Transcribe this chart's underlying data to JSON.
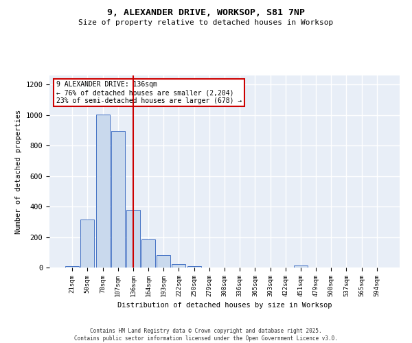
{
  "title_line1": "9, ALEXANDER DRIVE, WORKSOP, S81 7NP",
  "title_line2": "Size of property relative to detached houses in Worksop",
  "xlabel": "Distribution of detached houses by size in Worksop",
  "ylabel": "Number of detached properties",
  "categories": [
    "21sqm",
    "50sqm",
    "78sqm",
    "107sqm",
    "136sqm",
    "164sqm",
    "193sqm",
    "222sqm",
    "250sqm",
    "279sqm",
    "308sqm",
    "336sqm",
    "365sqm",
    "393sqm",
    "422sqm",
    "451sqm",
    "479sqm",
    "508sqm",
    "537sqm",
    "565sqm",
    "594sqm"
  ],
  "values": [
    10,
    315,
    1005,
    895,
    380,
    183,
    80,
    22,
    8,
    0,
    0,
    0,
    0,
    0,
    0,
    15,
    0,
    0,
    0,
    0,
    0
  ],
  "bar_color": "#c9d9ed",
  "bar_edge_color": "#4472c4",
  "vline_index": 4,
  "vline_color": "#cc0000",
  "annotation_title": "9 ALEXANDER DRIVE: 136sqm",
  "annotation_line1": "← 76% of detached houses are smaller (2,204)",
  "annotation_line2": "23% of semi-detached houses are larger (678) →",
  "annotation_box_color": "#cc0000",
  "ylim": [
    0,
    1260
  ],
  "yticks": [
    0,
    200,
    400,
    600,
    800,
    1000,
    1200
  ],
  "background_color": "#e8eef7",
  "grid_color": "#ffffff",
  "footer_line1": "Contains HM Land Registry data © Crown copyright and database right 2025.",
  "footer_line2": "Contains public sector information licensed under the Open Government Licence v3.0."
}
